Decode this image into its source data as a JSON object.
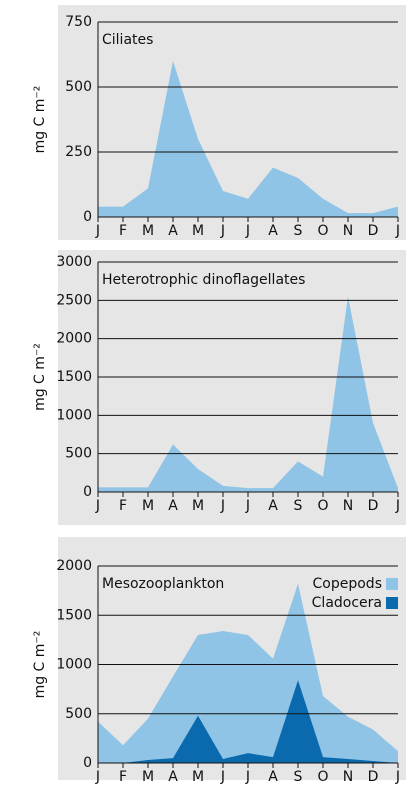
{
  "chart_data": [
    {
      "type": "area",
      "title": "Ciliates",
      "ylabel": "mg C m⁻²",
      "categories": [
        "J",
        "F",
        "M",
        "A",
        "M",
        "J",
        "J",
        "A",
        "S",
        "O",
        "N",
        "D",
        "J"
      ],
      "values": [
        40,
        40,
        110,
        600,
        300,
        100,
        70,
        190,
        150,
        70,
        15,
        15,
        40
      ],
      "color": "#8fc4e6",
      "ylim": [
        0,
        750
      ],
      "yticks": [
        0,
        250,
        500,
        750
      ],
      "grid": true
    },
    {
      "type": "area",
      "title": "Heterotrophic dinoflagellates",
      "ylabel": "mg C m⁻²",
      "categories": [
        "J",
        "F",
        "M",
        "A",
        "M",
        "J",
        "J",
        "A",
        "S",
        "O",
        "N",
        "D",
        "J"
      ],
      "values": [
        60,
        60,
        60,
        620,
        300,
        80,
        50,
        50,
        400,
        200,
        2550,
        900,
        50
      ],
      "color": "#8fc4e6",
      "ylim": [
        0,
        3000
      ],
      "yticks": [
        0,
        500,
        1000,
        1500,
        2000,
        2500,
        3000
      ],
      "grid": true
    },
    {
      "type": "area",
      "title": "Mesozooplankton",
      "ylabel": "mg C m⁻²",
      "categories": [
        "J",
        "F",
        "M",
        "A",
        "M",
        "J",
        "J",
        "A",
        "S",
        "O",
        "N",
        "D",
        "J"
      ],
      "series": [
        {
          "name": "Copepods",
          "color": "#8fc4e6",
          "values": [
            420,
            180,
            450,
            880,
            1300,
            1340,
            1300,
            1060,
            1820,
            680,
            470,
            340,
            120
          ]
        },
        {
          "name": "Cladocera",
          "color": "#0b6aae",
          "values": [
            0,
            0,
            30,
            50,
            480,
            40,
            100,
            60,
            840,
            60,
            40,
            20,
            0
          ]
        }
      ],
      "ylim": [
        0,
        2000
      ],
      "yticks": [
        0,
        500,
        1000,
        1500,
        2000
      ],
      "grid": true,
      "legend": "top-right"
    }
  ]
}
